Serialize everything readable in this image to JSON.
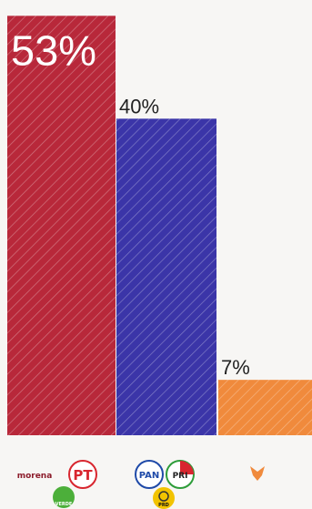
{
  "chart_data": {
    "type": "bar",
    "categories": [
      "Morena-PT-PVEM",
      "PAN-PRI-PRD",
      "MC"
    ],
    "values": [
      53,
      40,
      7
    ],
    "value_labels": [
      "53%",
      "40%",
      "7%"
    ],
    "ylim": [
      0,
      55
    ],
    "grid": false,
    "legend": "none",
    "colors": [
      "#b8283a",
      "#3b35a8",
      "#f08a3c"
    ],
    "hatch_color": "#ffffff"
  },
  "logos": {
    "morena": {
      "text": "morena",
      "color": "#8c1c2b"
    },
    "pt": {
      "text": "PT",
      "color": "#d8262f"
    },
    "verde": {
      "text": "VERDE",
      "color": "#4caf3a"
    },
    "pan": {
      "text": "PAN",
      "color": "#1f4aa8"
    },
    "pri": {
      "text": "PRI",
      "color": "#d8262f"
    },
    "prd": {
      "text": "PRD",
      "color": "#f2c300"
    },
    "mc": {
      "icon": "eagle-icon",
      "color": "#f08a3c"
    }
  }
}
